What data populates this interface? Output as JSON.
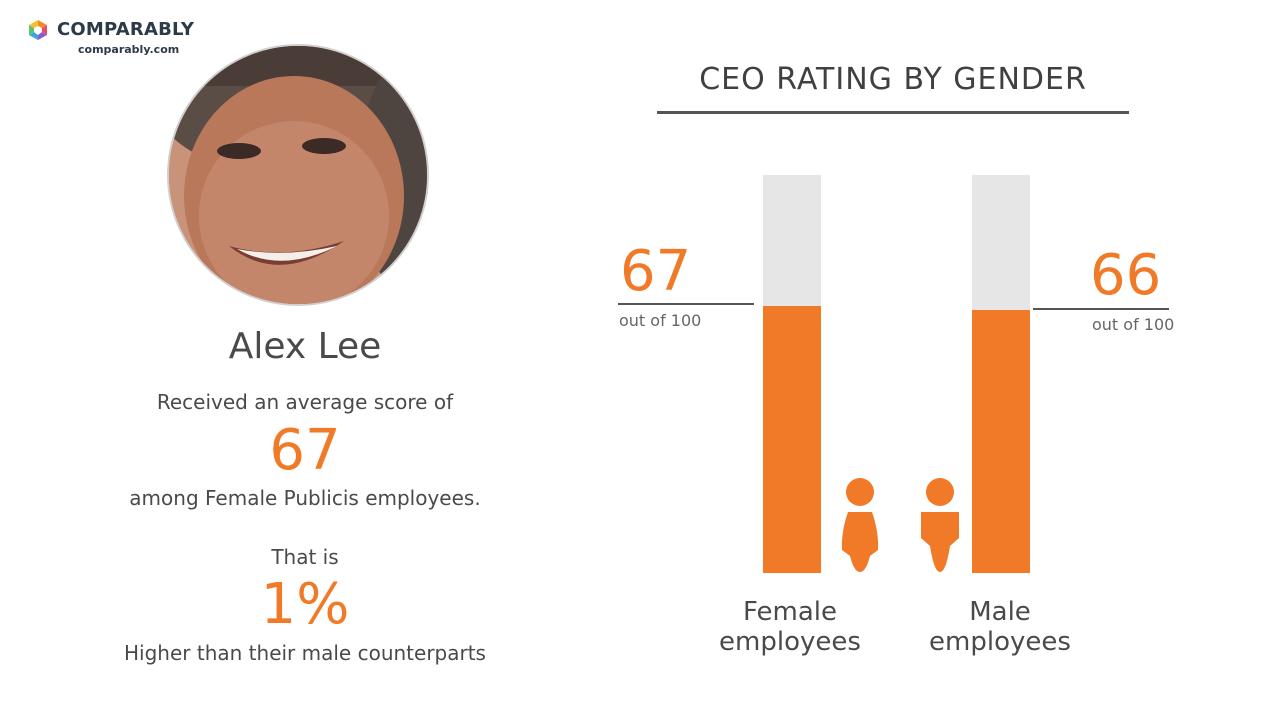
{
  "brand": {
    "name": "COMPARABLY",
    "url": "comparably.com"
  },
  "profile": {
    "name": "Alex Lee",
    "line1": "Received an average score of",
    "score": "67",
    "line2": "among Female Publicis employees.",
    "line3": "That is",
    "difference": "1%",
    "line4": "Higher than their male counterparts"
  },
  "chart_data": {
    "type": "bar",
    "title": "CEO RATING BY GENDER",
    "categories": [
      "Female employees",
      "Male employees"
    ],
    "values": [
      67,
      66
    ],
    "value_labels": [
      "67",
      "66"
    ],
    "value_suffix": "out of 100",
    "ylim": [
      0,
      100
    ]
  },
  "colors": {
    "accent": "#f07a28",
    "track": "#e6e6e6",
    "text": "#4a4a4a"
  },
  "icons": [
    "comparably-logo-icon",
    "female-person-icon",
    "male-person-icon"
  ]
}
